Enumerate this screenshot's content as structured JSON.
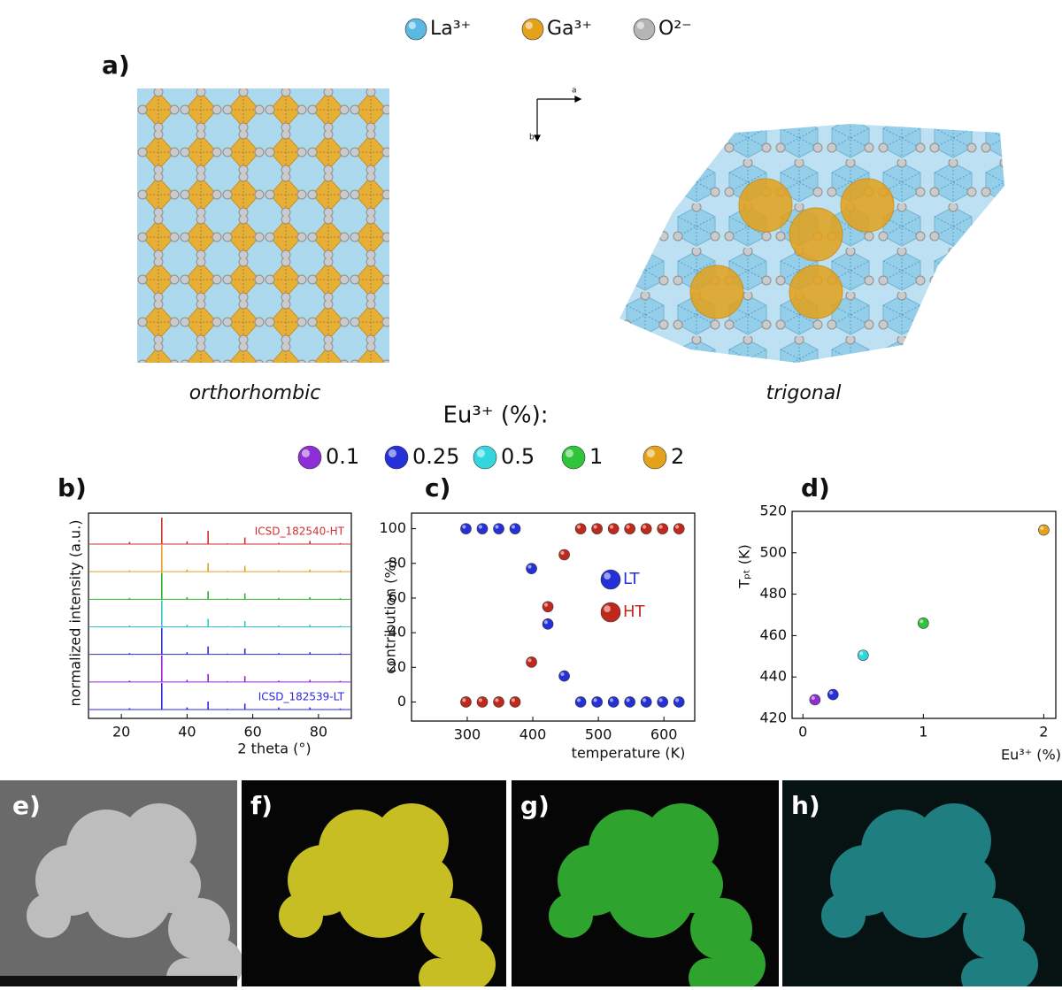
{
  "legend_ions": [
    {
      "label": "La³⁺",
      "color": "#5bb8e2"
    },
    {
      "label": "Ga³⁺",
      "color": "#e3a21a"
    },
    {
      "label": "O²⁻",
      "color": "#b4b4b4"
    }
  ],
  "panel_a": {
    "label": "a)",
    "axes": [
      "a",
      "b"
    ],
    "structures": [
      "orthorhombic",
      "trigonal"
    ]
  },
  "eu_legend": {
    "title": "Eu³⁺ (%):",
    "items": [
      {
        "label": "0.1",
        "color": "#8e2fd6"
      },
      {
        "label": "0.25",
        "color": "#2430d8"
      },
      {
        "label": "0.5",
        "color": "#33d6dd"
      },
      {
        "label": "1",
        "color": "#2fc43a"
      },
      {
        "label": "2",
        "color": "#e3a21a"
      }
    ]
  },
  "sem": {
    "labels": [
      "e)",
      "f)",
      "g)",
      "h)"
    ]
  },
  "chart_data": [
    {
      "type": "stick",
      "label": "b)",
      "xlabel": "2 theta (°)",
      "ylabel": "normalized intensity (a.u.)",
      "x": [
        22.5,
        32.3,
        40,
        46.4,
        52.2,
        57.6,
        67.9,
        77.4,
        86.6
      ],
      "xlim": [
        10,
        90
      ],
      "xticks": [
        20,
        40,
        60,
        80
      ],
      "series": [
        {
          "name": "ICSD_182540-HT",
          "color": "#d0312d",
          "values": [
            8,
            100,
            10,
            50,
            3,
            25,
            5,
            12,
            4
          ]
        },
        {
          "color": "#e0a020",
          "values": [
            5,
            100,
            8,
            32,
            3,
            22,
            5,
            8,
            4
          ]
        },
        {
          "color": "#2fb02f",
          "values": [
            5,
            100,
            8,
            30,
            3,
            22,
            5,
            8,
            4
          ]
        },
        {
          "color": "#30c8c8",
          "values": [
            5,
            100,
            8,
            30,
            3,
            22,
            5,
            8,
            4
          ]
        },
        {
          "color": "#3030d0",
          "values": [
            5,
            100,
            8,
            30,
            3,
            22,
            5,
            8,
            4
          ]
        },
        {
          "color": "#9a20d0",
          "values": [
            5,
            100,
            8,
            30,
            3,
            22,
            5,
            8,
            4
          ]
        },
        {
          "name": "ICSD_182539-LT",
          "color": "#2a2ae0",
          "values": [
            5,
            100,
            8,
            30,
            3,
            22,
            8,
            8,
            4
          ]
        }
      ]
    },
    {
      "type": "scatter",
      "label": "c)",
      "xlabel": "temperature (K)",
      "ylabel": "contribution (%)",
      "x": [
        298,
        323,
        348,
        373,
        398,
        423,
        448,
        473,
        498,
        523,
        548,
        573,
        598,
        623
      ],
      "xlim": [
        215,
        647
      ],
      "xticks": [
        300,
        400,
        500,
        600
      ],
      "ylim": [
        -11,
        109
      ],
      "yticks": [
        0,
        20,
        40,
        60,
        80,
        100
      ],
      "series": [
        {
          "name": "LT",
          "color": "#2430d8",
          "values": [
            100,
            100,
            100,
            100,
            77,
            45,
            15,
            0,
            0,
            0,
            0,
            0,
            0,
            0
          ]
        },
        {
          "name": "HT",
          "color": "#c0281c",
          "values": [
            0,
            0,
            0,
            0,
            23,
            55,
            85,
            100,
            100,
            100,
            100,
            100,
            100,
            100
          ]
        }
      ]
    },
    {
      "type": "scatter",
      "label": "d)",
      "xlabel": "Eu³⁺ (%)",
      "ylabel": "Tₚₜ (K)",
      "x": [
        0.1,
        0.25,
        0.5,
        1,
        2
      ],
      "xlim": [
        -0.09,
        2.1
      ],
      "xticks": [
        0,
        1,
        2
      ],
      "ylim": [
        420,
        520
      ],
      "yticks": [
        420,
        440,
        460,
        480,
        500,
        520
      ],
      "series": [
        {
          "colors": [
            "#8e2fd6",
            "#2430d8",
            "#33d6dd",
            "#2fc43a",
            "#e3a21a"
          ],
          "values": [
            429,
            431.5,
            450.5,
            466,
            511
          ]
        }
      ]
    }
  ]
}
